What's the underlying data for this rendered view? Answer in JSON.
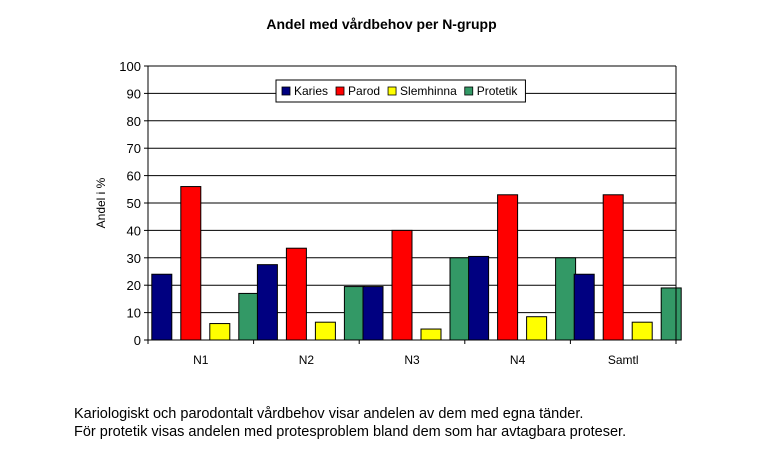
{
  "chart_data": {
    "type": "bar",
    "title": "Andel med vårdbehov per N-grupp",
    "ylabel": "Andel i %",
    "xlabel": "",
    "ylim": [
      0,
      100
    ],
    "yticks": [
      0,
      10,
      20,
      30,
      40,
      50,
      60,
      70,
      80,
      90,
      100
    ],
    "grid": true,
    "legend_position": "top-center",
    "categories": [
      "N1",
      "N2",
      "N3",
      "N4",
      "Samtl"
    ],
    "series": [
      {
        "name": "Karies",
        "color": "#000080",
        "values": [
          24,
          27.5,
          19.5,
          30.5,
          24
        ]
      },
      {
        "name": "Parod",
        "color": "#ff0000",
        "values": [
          56,
          33.5,
          40,
          53,
          53
        ]
      },
      {
        "name": "Slemhinna",
        "color": "#ffff00",
        "values": [
          6,
          6.5,
          4,
          8.5,
          6.5
        ]
      },
      {
        "name": "Protetik",
        "color": "#339966",
        "values": [
          17,
          19.5,
          30,
          30,
          19
        ]
      }
    ]
  },
  "caption": {
    "line1": "Kariologiskt och parodontalt vårdbehov visar andelen av dem med egna tänder.",
    "line2": "För protetik visas andelen med protesproblem bland dem som har avtagbara proteser."
  }
}
